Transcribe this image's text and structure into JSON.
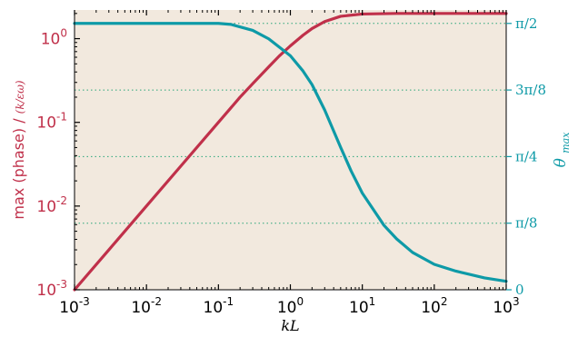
{
  "chart_data": {
    "type": "line",
    "x_scale": "log",
    "xlim": [
      0.001,
      1000
    ],
    "xlabel": "kL",
    "x_ticks": [
      {
        "v": 0.001,
        "base": "10",
        "exp": "-3"
      },
      {
        "v": 0.01,
        "base": "10",
        "exp": "-2"
      },
      {
        "v": 0.1,
        "base": "10",
        "exp": "-1"
      },
      {
        "v": 1,
        "base": "10",
        "exp": "0"
      },
      {
        "v": 10,
        "base": "10",
        "exp": "1"
      },
      {
        "v": 100,
        "base": "10",
        "exp": "2"
      },
      {
        "v": 1000,
        "base": "10",
        "exp": "3"
      }
    ],
    "y_left": {
      "scale": "log",
      "lim": [
        0.001,
        2.2
      ],
      "label_main": "max (phase) /",
      "label_frac": "(k/εω)",
      "color": "#c0304a",
      "ticks": [
        {
          "v": 0.001,
          "base": "10",
          "exp": "-3"
        },
        {
          "v": 0.01,
          "base": "10",
          "exp": "-2"
        },
        {
          "v": 0.1,
          "base": "10",
          "exp": "-1"
        },
        {
          "v": 1,
          "base": "10",
          "exp": "0"
        }
      ]
    },
    "y_right": {
      "scale": "linear",
      "lim": [
        0,
        1.65
      ],
      "label": "θ",
      "label_sub": "max",
      "color": "#0e9aa7",
      "ticks": [
        {
          "v": 0,
          "label": "0"
        },
        {
          "v": 0.3927,
          "label": "π/8"
        },
        {
          "v": 0.7854,
          "label": "π/4"
        },
        {
          "v": 1.1781,
          "label": "3π/8"
        },
        {
          "v": 1.5708,
          "label": "π/2"
        }
      ],
      "gridlines": [
        0.3927,
        0.7854,
        1.1781,
        1.5708
      ]
    },
    "background": "#f2e9de",
    "grid_color": "#2aa57a",
    "series": [
      {
        "axis": "left",
        "color": "#c0304a",
        "x": [
          0.001,
          0.003,
          0.01,
          0.03,
          0.1,
          0.2,
          0.3,
          0.5,
          0.7,
          1,
          1.5,
          2,
          3,
          5,
          10,
          30,
          100,
          1000
        ],
        "y": [
          0.001,
          0.003,
          0.01,
          0.03,
          0.1,
          0.2,
          0.29,
          0.46,
          0.62,
          0.82,
          1.1,
          1.32,
          1.6,
          1.85,
          1.97,
          2.0,
          2.0,
          2.0
        ]
      },
      {
        "axis": "right",
        "color": "#0e9aa7",
        "x": [
          0.001,
          0.01,
          0.1,
          0.15,
          0.3,
          0.5,
          1,
          1.5,
          2,
          3,
          5,
          7,
          10,
          20,
          30,
          50,
          100,
          200,
          500,
          1000
        ],
        "y": [
          1.5708,
          1.5708,
          1.5708,
          1.565,
          1.53,
          1.48,
          1.38,
          1.29,
          1.21,
          1.06,
          0.84,
          0.7,
          0.57,
          0.38,
          0.3,
          0.22,
          0.15,
          0.11,
          0.07,
          0.05
        ]
      }
    ]
  }
}
